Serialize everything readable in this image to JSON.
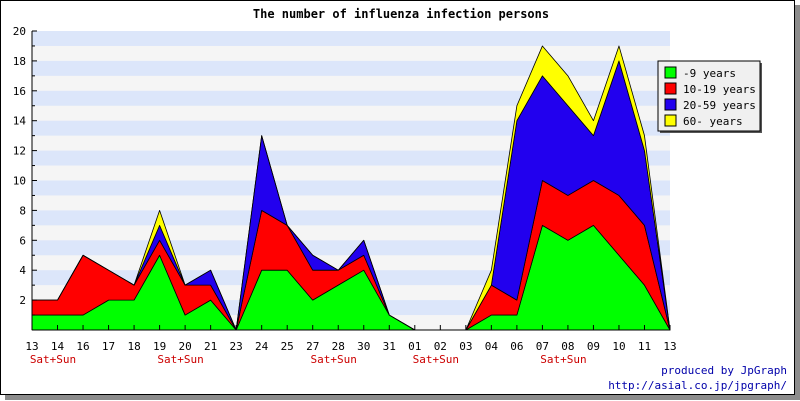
{
  "chart_data": {
    "type": "area",
    "stacked": true,
    "title": "The number of influenza infection persons",
    "xlabel": "",
    "ylabel": "",
    "ylim": [
      0,
      20
    ],
    "y_ticks": [
      2,
      4,
      6,
      8,
      10,
      12,
      14,
      16,
      18,
      20
    ],
    "grid": "horizontal bands",
    "legend_position": "top-right",
    "categories": [
      "13",
      "14",
      "16",
      "17",
      "18",
      "19",
      "20",
      "21",
      "23",
      "24",
      "25",
      "27",
      "28",
      "30",
      "31",
      "01",
      "02",
      "03",
      "04",
      "06",
      "07",
      "08",
      "09",
      "10",
      "11",
      "13"
    ],
    "weekend_markers": [
      {
        "category_index": 0,
        "label": "Sat+Sun"
      },
      {
        "category_index": 5,
        "label": "Sat+Sun"
      },
      {
        "category_index": 11,
        "label": "Sat+Sun"
      },
      {
        "category_index": 15,
        "label": "Sat+Sun"
      },
      {
        "category_index": 20,
        "label": "Sat+Sun"
      }
    ],
    "series": [
      {
        "name": "-9 years",
        "color": "#00ff00",
        "values": [
          1,
          1,
          1,
          2,
          2,
          5,
          1,
          2,
          0,
          4,
          4,
          2,
          3,
          4,
          1,
          0,
          0,
          0,
          1,
          1,
          7,
          6,
          7,
          5,
          3,
          0
        ]
      },
      {
        "name": "10-19 years",
        "color": "#ff0000",
        "values": [
          1,
          1,
          4,
          2,
          1,
          1,
          2,
          1,
          0,
          4,
          3,
          2,
          1,
          1,
          0,
          0,
          0,
          0,
          2,
          1,
          3,
          3,
          3,
          4,
          4,
          0
        ]
      },
      {
        "name": "20-59 years",
        "color": "#2200ee",
        "values": [
          0,
          0,
          0,
          0,
          0,
          1,
          0,
          1,
          0,
          5,
          0,
          1,
          0,
          1,
          0,
          0,
          0,
          0,
          0,
          12,
          7,
          6,
          3,
          9,
          5,
          0
        ]
      },
      {
        "name": "60- years",
        "color": "#ffff00",
        "values": [
          0,
          0,
          0,
          0,
          0,
          1,
          0,
          0,
          0,
          0,
          0,
          0,
          0,
          0,
          0,
          0,
          0,
          0,
          1,
          1,
          2,
          2,
          1,
          1,
          1,
          0
        ]
      }
    ]
  },
  "footer": {
    "credit_line1": "produced by JpGraph",
    "credit_line2": "http://asial.co.jp/jpgraph/"
  }
}
